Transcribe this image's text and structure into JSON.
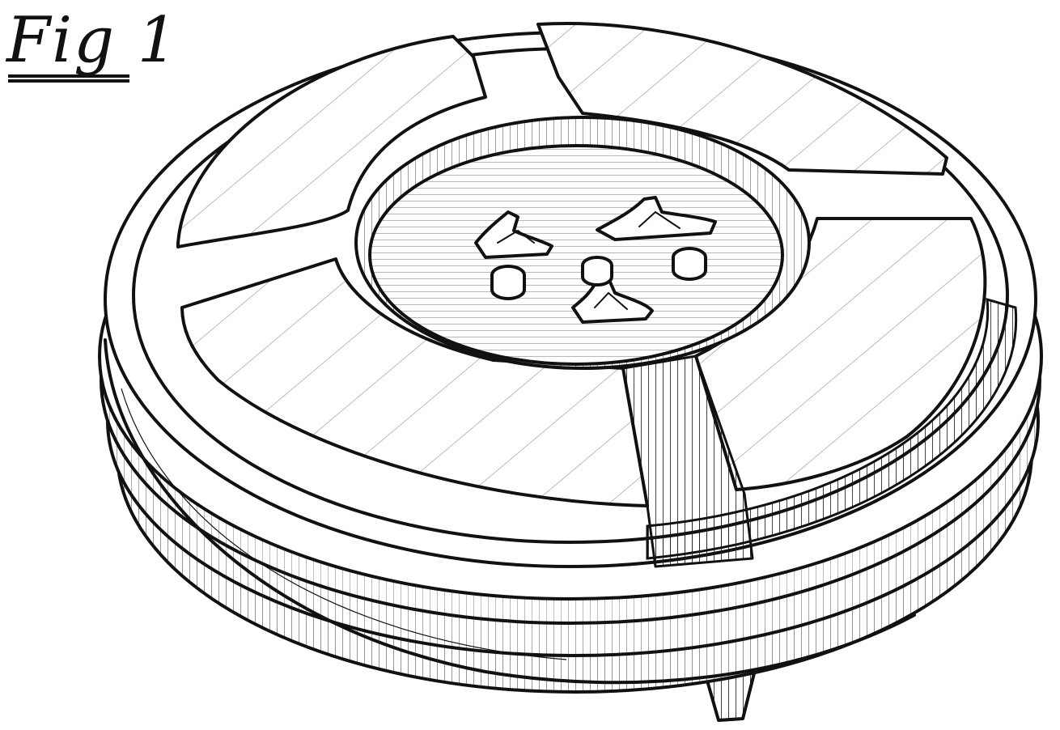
{
  "figure": {
    "label": "Fig 1"
  },
  "icons": {
    "object": "round-reel-device-drawing"
  }
}
